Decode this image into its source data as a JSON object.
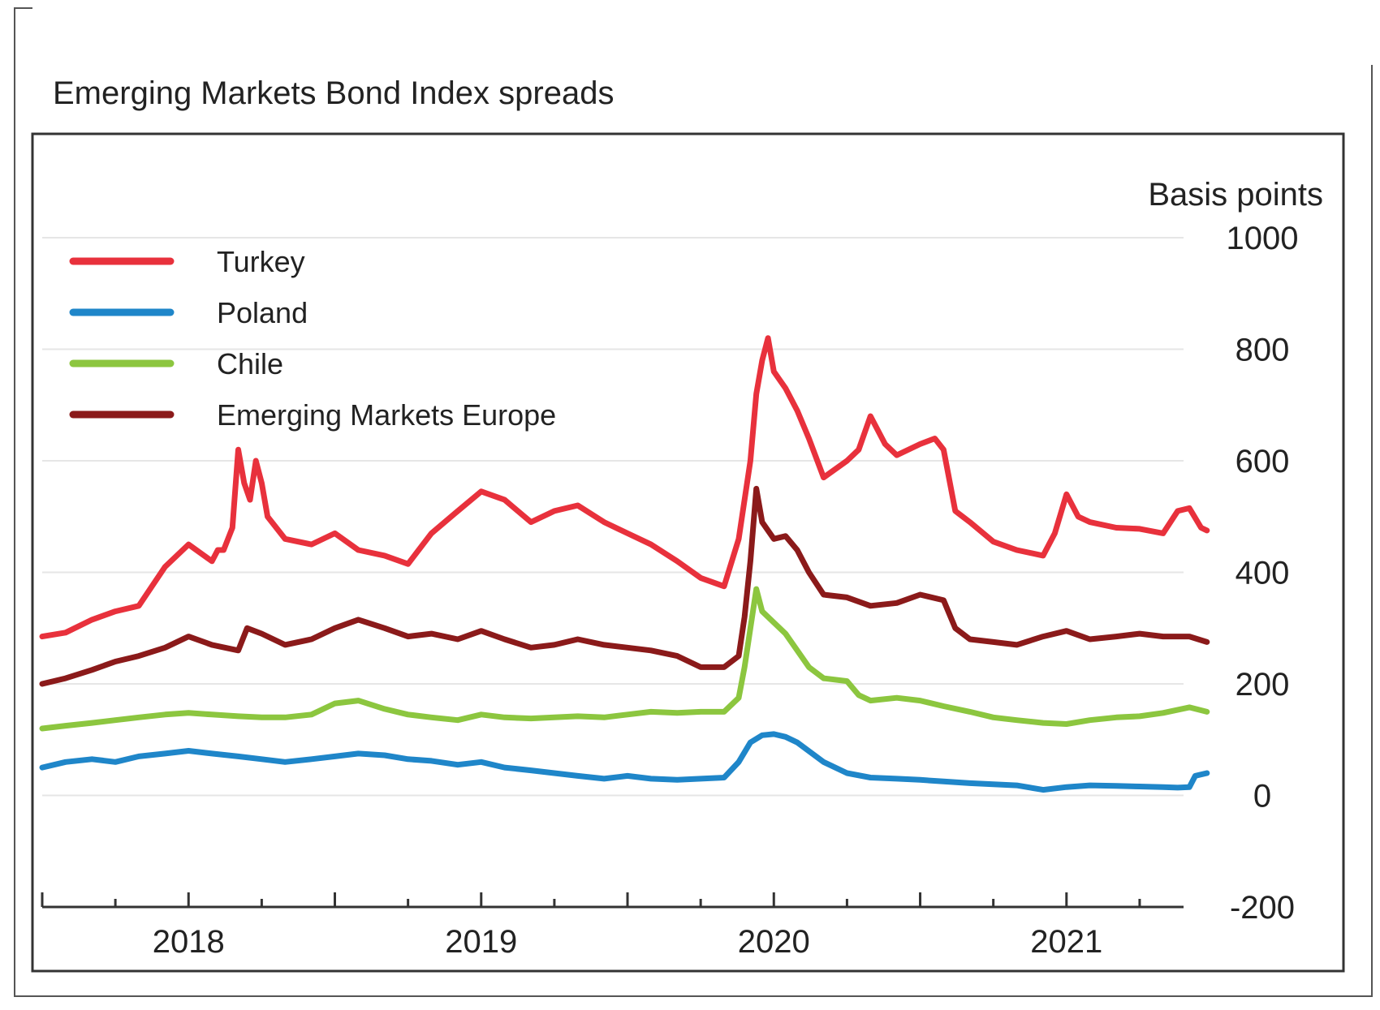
{
  "chart_data": {
    "type": "line",
    "title": "Emerging Markets Bond Index spreads",
    "ylabel": "Basis points",
    "ylim": [
      -200,
      1000
    ],
    "yticks": [
      1000,
      800,
      600,
      400,
      200,
      0,
      -200
    ],
    "xlim": [
      2017.5,
      2021.4
    ],
    "xticks": [
      {
        "label": "2018",
        "value": 2018.0
      },
      {
        "label": "2019",
        "value": 2019.0
      },
      {
        "label": "2020",
        "value": 2020.0
      },
      {
        "label": "2021",
        "value": 2021.0
      }
    ],
    "grid": true,
    "legend_position": "top-left",
    "series": [
      {
        "name": "Turkey",
        "color": "#e8313c",
        "points": [
          [
            2017.5,
            285
          ],
          [
            2017.58,
            292
          ],
          [
            2017.67,
            315
          ],
          [
            2017.75,
            330
          ],
          [
            2017.83,
            340
          ],
          [
            2017.92,
            410
          ],
          [
            2018.0,
            450
          ],
          [
            2018.08,
            420
          ],
          [
            2018.1,
            440
          ],
          [
            2018.12,
            440
          ],
          [
            2018.15,
            480
          ],
          [
            2018.17,
            620
          ],
          [
            2018.19,
            560
          ],
          [
            2018.21,
            530
          ],
          [
            2018.23,
            600
          ],
          [
            2018.25,
            560
          ],
          [
            2018.27,
            500
          ],
          [
            2018.33,
            460
          ],
          [
            2018.42,
            450
          ],
          [
            2018.5,
            470
          ],
          [
            2018.58,
            440
          ],
          [
            2018.67,
            430
          ],
          [
            2018.75,
            415
          ],
          [
            2018.83,
            470
          ],
          [
            2018.92,
            510
          ],
          [
            2019.0,
            545
          ],
          [
            2019.08,
            530
          ],
          [
            2019.17,
            490
          ],
          [
            2019.25,
            510
          ],
          [
            2019.33,
            520
          ],
          [
            2019.42,
            490
          ],
          [
            2019.5,
            470
          ],
          [
            2019.58,
            450
          ],
          [
            2019.67,
            420
          ],
          [
            2019.75,
            390
          ],
          [
            2019.83,
            375
          ],
          [
            2019.88,
            460
          ],
          [
            2019.92,
            600
          ],
          [
            2019.94,
            720
          ],
          [
            2019.96,
            780
          ],
          [
            2019.98,
            820
          ],
          [
            2020.0,
            760
          ],
          [
            2020.04,
            730
          ],
          [
            2020.08,
            690
          ],
          [
            2020.12,
            640
          ],
          [
            2020.17,
            570
          ],
          [
            2020.25,
            600
          ],
          [
            2020.29,
            620
          ],
          [
            2020.33,
            680
          ],
          [
            2020.38,
            630
          ],
          [
            2020.42,
            610
          ],
          [
            2020.5,
            630
          ],
          [
            2020.55,
            640
          ],
          [
            2020.58,
            620
          ],
          [
            2020.62,
            510
          ],
          [
            2020.67,
            490
          ],
          [
            2020.75,
            455
          ],
          [
            2020.83,
            440
          ],
          [
            2020.92,
            430
          ],
          [
            2020.96,
            470
          ],
          [
            2021.0,
            540
          ],
          [
            2021.04,
            500
          ],
          [
            2021.08,
            490
          ],
          [
            2021.17,
            480
          ],
          [
            2021.25,
            478
          ],
          [
            2021.33,
            470
          ],
          [
            2021.38,
            510
          ],
          [
            2021.42,
            515
          ],
          [
            2021.46,
            480
          ],
          [
            2021.48,
            475
          ]
        ]
      },
      {
        "name": "Poland",
        "color": "#1f86c9",
        "points": [
          [
            2017.5,
            50
          ],
          [
            2017.58,
            60
          ],
          [
            2017.67,
            65
          ],
          [
            2017.75,
            60
          ],
          [
            2017.83,
            70
          ],
          [
            2017.92,
            75
          ],
          [
            2018.0,
            80
          ],
          [
            2018.08,
            75
          ],
          [
            2018.17,
            70
          ],
          [
            2018.25,
            65
          ],
          [
            2018.33,
            60
          ],
          [
            2018.42,
            65
          ],
          [
            2018.5,
            70
          ],
          [
            2018.58,
            75
          ],
          [
            2018.67,
            72
          ],
          [
            2018.75,
            65
          ],
          [
            2018.83,
            62
          ],
          [
            2018.92,
            55
          ],
          [
            2019.0,
            60
          ],
          [
            2019.08,
            50
          ],
          [
            2019.17,
            45
          ],
          [
            2019.25,
            40
          ],
          [
            2019.33,
            35
          ],
          [
            2019.42,
            30
          ],
          [
            2019.5,
            35
          ],
          [
            2019.58,
            30
          ],
          [
            2019.67,
            28
          ],
          [
            2019.75,
            30
          ],
          [
            2019.83,
            32
          ],
          [
            2019.88,
            60
          ],
          [
            2019.92,
            95
          ],
          [
            2019.96,
            108
          ],
          [
            2020.0,
            110
          ],
          [
            2020.04,
            105
          ],
          [
            2020.08,
            95
          ],
          [
            2020.17,
            60
          ],
          [
            2020.25,
            40
          ],
          [
            2020.33,
            32
          ],
          [
            2020.42,
            30
          ],
          [
            2020.5,
            28
          ],
          [
            2020.58,
            25
          ],
          [
            2020.67,
            22
          ],
          [
            2020.75,
            20
          ],
          [
            2020.83,
            18
          ],
          [
            2020.92,
            10
          ],
          [
            2021.0,
            15
          ],
          [
            2021.08,
            18
          ],
          [
            2021.17,
            17
          ],
          [
            2021.25,
            16
          ],
          [
            2021.33,
            15
          ],
          [
            2021.38,
            14
          ],
          [
            2021.42,
            15
          ],
          [
            2021.44,
            35
          ],
          [
            2021.48,
            40
          ]
        ]
      },
      {
        "name": "Chile",
        "color": "#8cc63f",
        "points": [
          [
            2017.5,
            120
          ],
          [
            2017.58,
            125
          ],
          [
            2017.67,
            130
          ],
          [
            2017.75,
            135
          ],
          [
            2017.83,
            140
          ],
          [
            2017.92,
            145
          ],
          [
            2018.0,
            148
          ],
          [
            2018.08,
            145
          ],
          [
            2018.17,
            142
          ],
          [
            2018.25,
            140
          ],
          [
            2018.33,
            140
          ],
          [
            2018.42,
            145
          ],
          [
            2018.5,
            165
          ],
          [
            2018.58,
            170
          ],
          [
            2018.67,
            155
          ],
          [
            2018.75,
            145
          ],
          [
            2018.83,
            140
          ],
          [
            2018.92,
            135
          ],
          [
            2019.0,
            145
          ],
          [
            2019.08,
            140
          ],
          [
            2019.17,
            138
          ],
          [
            2019.25,
            140
          ],
          [
            2019.33,
            142
          ],
          [
            2019.42,
            140
          ],
          [
            2019.5,
            145
          ],
          [
            2019.58,
            150
          ],
          [
            2019.67,
            148
          ],
          [
            2019.75,
            150
          ],
          [
            2019.83,
            150
          ],
          [
            2019.88,
            175
          ],
          [
            2019.9,
            230
          ],
          [
            2019.92,
            300
          ],
          [
            2019.94,
            370
          ],
          [
            2019.96,
            330
          ],
          [
            2020.0,
            310
          ],
          [
            2020.04,
            290
          ],
          [
            2020.08,
            260
          ],
          [
            2020.12,
            230
          ],
          [
            2020.17,
            210
          ],
          [
            2020.25,
            205
          ],
          [
            2020.29,
            180
          ],
          [
            2020.33,
            170
          ],
          [
            2020.42,
            175
          ],
          [
            2020.5,
            170
          ],
          [
            2020.58,
            160
          ],
          [
            2020.67,
            150
          ],
          [
            2020.75,
            140
          ],
          [
            2020.83,
            135
          ],
          [
            2020.92,
            130
          ],
          [
            2021.0,
            128
          ],
          [
            2021.08,
            135
          ],
          [
            2021.17,
            140
          ],
          [
            2021.25,
            142
          ],
          [
            2021.33,
            148
          ],
          [
            2021.42,
            158
          ],
          [
            2021.48,
            150
          ]
        ]
      },
      {
        "name": "Emerging Markets Europe",
        "color": "#8b1a1a",
        "points": [
          [
            2017.5,
            200
          ],
          [
            2017.58,
            210
          ],
          [
            2017.67,
            225
          ],
          [
            2017.75,
            240
          ],
          [
            2017.83,
            250
          ],
          [
            2017.92,
            265
          ],
          [
            2018.0,
            285
          ],
          [
            2018.08,
            270
          ],
          [
            2018.17,
            260
          ],
          [
            2018.2,
            300
          ],
          [
            2018.25,
            290
          ],
          [
            2018.33,
            270
          ],
          [
            2018.42,
            280
          ],
          [
            2018.5,
            300
          ],
          [
            2018.58,
            315
          ],
          [
            2018.67,
            300
          ],
          [
            2018.75,
            285
          ],
          [
            2018.83,
            290
          ],
          [
            2018.92,
            280
          ],
          [
            2019.0,
            295
          ],
          [
            2019.08,
            280
          ],
          [
            2019.17,
            265
          ],
          [
            2019.25,
            270
          ],
          [
            2019.33,
            280
          ],
          [
            2019.42,
            270
          ],
          [
            2019.5,
            265
          ],
          [
            2019.58,
            260
          ],
          [
            2019.67,
            250
          ],
          [
            2019.75,
            230
          ],
          [
            2019.83,
            230
          ],
          [
            2019.88,
            250
          ],
          [
            2019.9,
            320
          ],
          [
            2019.92,
            420
          ],
          [
            2019.94,
            550
          ],
          [
            2019.96,
            490
          ],
          [
            2020.0,
            460
          ],
          [
            2020.04,
            465
          ],
          [
            2020.08,
            440
          ],
          [
            2020.12,
            400
          ],
          [
            2020.17,
            360
          ],
          [
            2020.25,
            355
          ],
          [
            2020.33,
            340
          ],
          [
            2020.42,
            345
          ],
          [
            2020.5,
            360
          ],
          [
            2020.58,
            350
          ],
          [
            2020.62,
            300
          ],
          [
            2020.67,
            280
          ],
          [
            2020.75,
            275
          ],
          [
            2020.83,
            270
          ],
          [
            2020.92,
            285
          ],
          [
            2021.0,
            295
          ],
          [
            2021.08,
            280
          ],
          [
            2021.17,
            285
          ],
          [
            2021.25,
            290
          ],
          [
            2021.33,
            285
          ],
          [
            2021.42,
            285
          ],
          [
            2021.48,
            275
          ]
        ]
      }
    ]
  }
}
